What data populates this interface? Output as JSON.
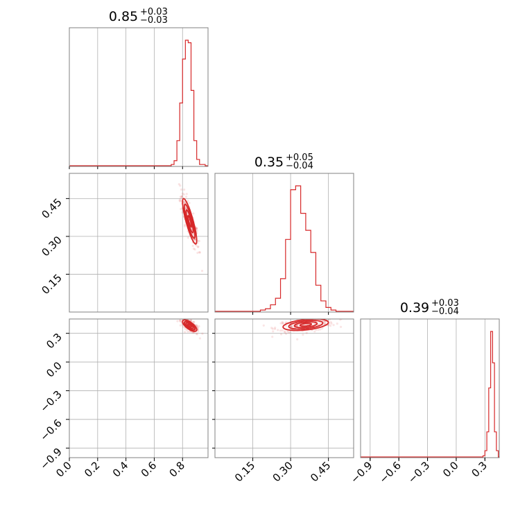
{
  "chart_data": {
    "type": "corner",
    "color": "#d62728",
    "titles": [
      {
        "median": "0.85",
        "plus": "+0.03",
        "minus": "−0.03"
      },
      {
        "median": "0.35",
        "plus": "+0.05",
        "minus": "−0.04"
      },
      {
        "median": "0.39",
        "plus": "+0.03",
        "minus": "−0.04"
      }
    ],
    "params": [
      {
        "range": [
          0.0,
          0.98
        ],
        "ticks": [
          0.0,
          0.2,
          0.4,
          0.6,
          0.8
        ],
        "tick_labels": [
          "0.0",
          "0.2",
          "0.4",
          "0.6",
          "0.8"
        ]
      },
      {
        "range": [
          0.0,
          0.55
        ],
        "ticks": [
          0.15,
          0.3,
          0.45
        ],
        "tick_labels": [
          "0.15",
          "0.30",
          "0.45"
        ]
      },
      {
        "range": [
          -1.0,
          0.45
        ],
        "ticks": [
          -0.9,
          -0.6,
          -0.3,
          0.0,
          0.3
        ],
        "tick_labels": [
          "−0.9",
          "−0.6",
          "−0.3",
          "0.0",
          "0.3"
        ]
      }
    ],
    "histograms": [
      {
        "bins": [
          0.72,
          0.74,
          0.76,
          0.78,
          0.8,
          0.82,
          0.84,
          0.86,
          0.88,
          0.9,
          0.92,
          0.94,
          0.96
        ],
        "counts": [
          0.01,
          0.04,
          0.2,
          0.5,
          0.85,
          1.0,
          0.98,
          0.6,
          0.2,
          0.05,
          0.01,
          0.01
        ]
      },
      {
        "bins": [
          0.18,
          0.2,
          0.22,
          0.24,
          0.26,
          0.28,
          0.3,
          0.32,
          0.34,
          0.36,
          0.38,
          0.4,
          0.42,
          0.44,
          0.46,
          0.48
        ],
        "counts": [
          0.01,
          0.02,
          0.05,
          0.1,
          0.25,
          0.55,
          0.93,
          0.96,
          0.75,
          0.62,
          0.45,
          0.2,
          0.08,
          0.03,
          0.01
        ]
      },
      {
        "bins": [
          0.28,
          0.3,
          0.32,
          0.34,
          0.36,
          0.38,
          0.4,
          0.42,
          0.44
        ],
        "counts": [
          0.01,
          0.05,
          0.2,
          0.55,
          1.0,
          0.75,
          0.2,
          0.05
        ]
      }
    ],
    "joint": [
      {
        "x_param": 0,
        "y_param": 1,
        "center": [
          0.85,
          0.36
        ],
        "sx": 0.025,
        "sy": 0.045,
        "corr": -0.85
      },
      {
        "x_param": 0,
        "y_param": 2,
        "center": [
          0.85,
          0.38
        ],
        "sx": 0.025,
        "sy": 0.03,
        "corr": -0.7
      },
      {
        "x_param": 1,
        "y_param": 2,
        "center": [
          0.36,
          0.39
        ],
        "sx": 0.045,
        "sy": 0.03,
        "corr": 0.4
      }
    ],
    "grid": true
  }
}
